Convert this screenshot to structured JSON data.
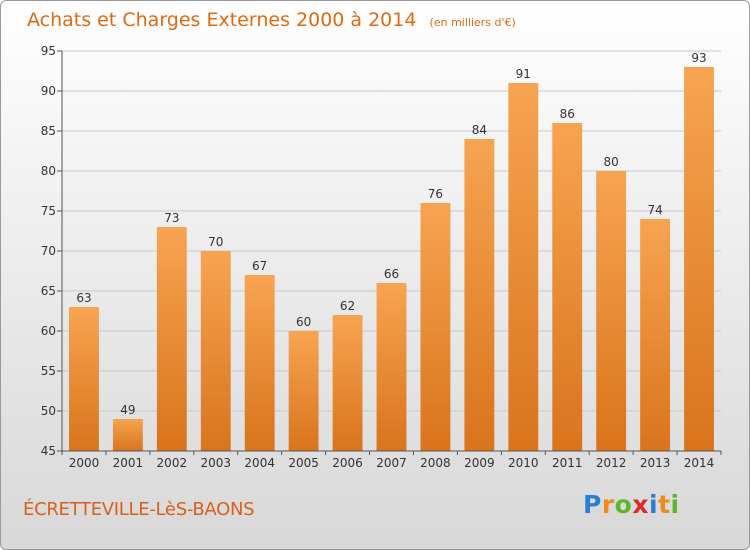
{
  "chart_data": {
    "type": "bar",
    "title": "Achats et Charges Externes 2000 à 2014",
    "subtitle": "(en milliers d'€)",
    "categories": [
      "2000",
      "2001",
      "2002",
      "2003",
      "2004",
      "2005",
      "2006",
      "2007",
      "2008",
      "2009",
      "2010",
      "2011",
      "2012",
      "2013",
      "2014"
    ],
    "values": [
      63,
      49,
      73,
      70,
      67,
      60,
      62,
      66,
      76,
      84,
      91,
      86,
      80,
      74,
      93
    ],
    "ylim": [
      45,
      95
    ],
    "yticks": [
      45,
      50,
      55,
      60,
      65,
      70,
      75,
      80,
      85,
      90,
      95
    ],
    "grid": true,
    "bar_color_top": "#f7a450",
    "bar_color_bottom": "#d9741c"
  },
  "footer": {
    "commune": "ÉCRETTEVILLE-LèS-BAONS",
    "logo_letters": [
      {
        "ch": "P",
        "color": "#2a7fd4"
      },
      {
        "ch": "r",
        "color": "#f08a1c"
      },
      {
        "ch": "o",
        "color": "#5cb82a"
      },
      {
        "ch": "x",
        "color": "#e02828"
      },
      {
        "ch": "i",
        "color": "#2a7fd4"
      },
      {
        "ch": "t",
        "color": "#f08a1c"
      },
      {
        "ch": "i",
        "color": "#5cb82a"
      }
    ]
  }
}
